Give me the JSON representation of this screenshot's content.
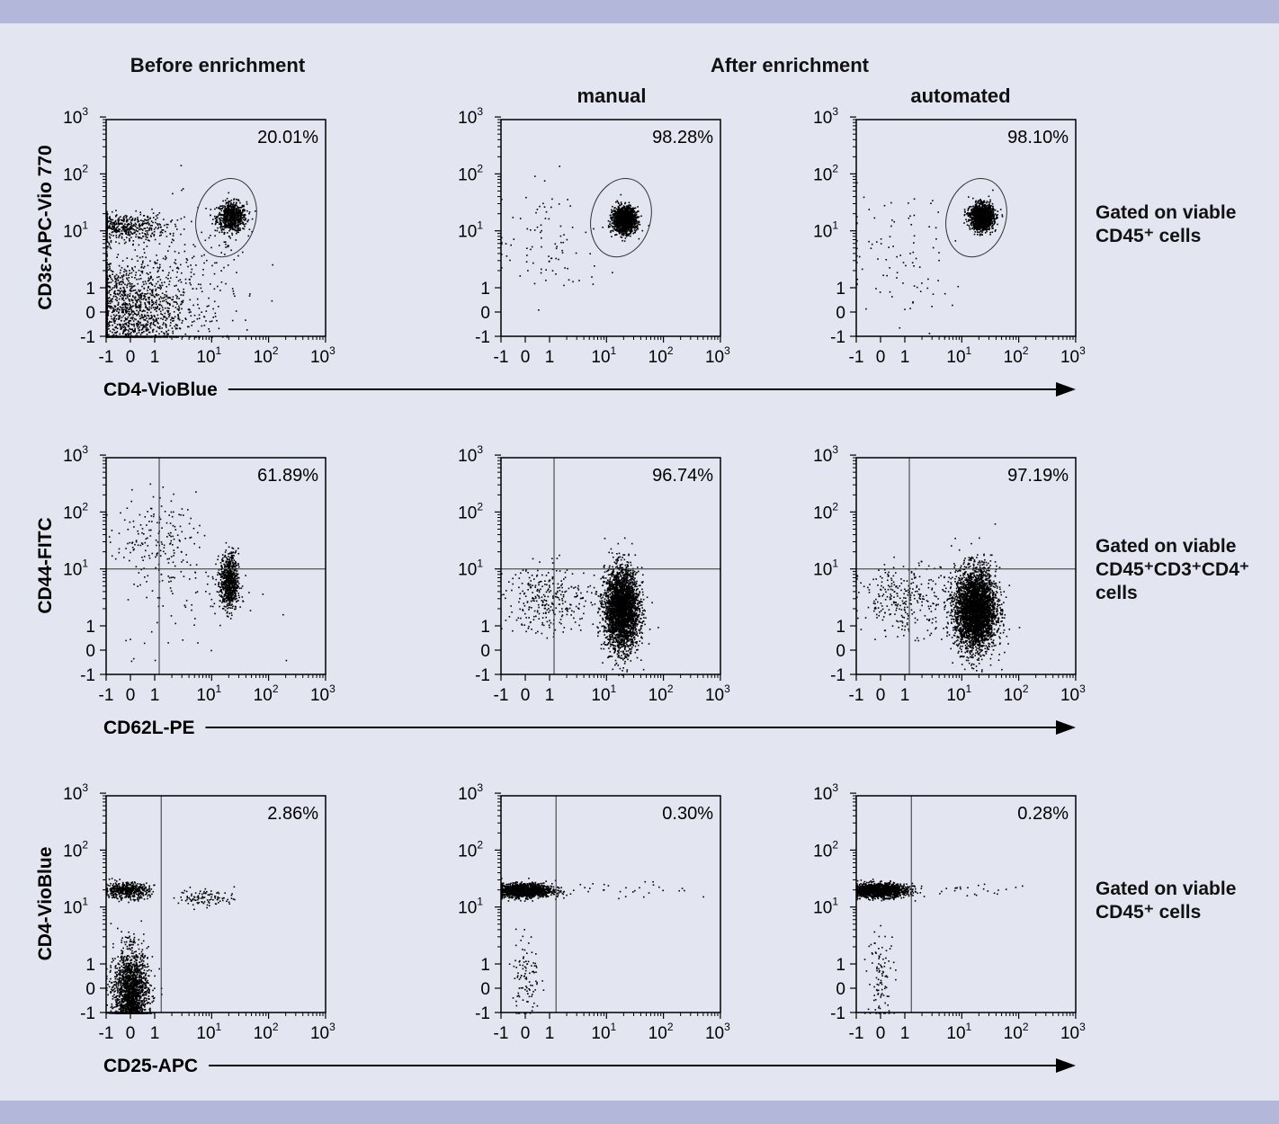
{
  "headers": {
    "before": "Before enrichment",
    "after": "After enrichment",
    "manual": "manual",
    "automated": "automated"
  },
  "colors": {
    "background": "#e3e5f1",
    "band": "#b3b8da",
    "points": "#000000"
  },
  "notes": [
    {
      "line1": "Gated on viable",
      "line2": "CD45⁺ cells",
      "line3": ""
    },
    {
      "line1": "Gated on viable",
      "line2": "CD45⁺CD3⁺CD4⁺",
      "line3": "cells"
    },
    {
      "line1": "Gated on viable",
      "line2": "CD45⁺ cells",
      "line3": ""
    }
  ],
  "chart_data": {
    "type": "scatter",
    "axis_scale": "biexponential (linear -1 to 1, log 1 to 10^3)",
    "ticks": [
      {
        "value": -1,
        "label": "-1",
        "sup": ""
      },
      {
        "value": 0,
        "label": "0",
        "sup": ""
      },
      {
        "value": 1,
        "label": "1",
        "sup": ""
      },
      {
        "value": 10,
        "label": "10",
        "sup": "1"
      },
      {
        "value": 100,
        "label": "10",
        "sup": "2"
      },
      {
        "value": 1000,
        "label": "10",
        "sup": "3"
      }
    ],
    "xlim": [
      -1,
      1000
    ],
    "ylim": [
      -1,
      1000
    ],
    "rows": [
      {
        "xlabel": "CD4-VioBlue",
        "ylabel": "CD3ε-APC-Vio 770",
        "gate": {
          "type": "ellipse",
          "x": 18,
          "y": 17,
          "rx_decades": 0.52,
          "ry_decades": 0.7
        },
        "plots": [
          {
            "percent": "20.01%",
            "clusters": [
              {
                "x": 22,
                "y": 18,
                "sx": 0.13,
                "sy": 0.13,
                "n": 700
              },
              {
                "x": -0.4,
                "y": 12,
                "sx": 0.4,
                "sy": 0.12,
                "n": 500
              },
              {
                "x": -0.3,
                "y": 0.1,
                "sx": 0.55,
                "sy": 0.45,
                "n": 1600
              },
              {
                "x": 5,
                "y": 1.5,
                "sx": 0.6,
                "sy": 0.6,
                "n": 160
              }
            ]
          },
          {
            "percent": "98.28%",
            "clusters": [
              {
                "x": 20,
                "y": 16,
                "sx": 0.1,
                "sy": 0.11,
                "n": 1500
              },
              {
                "x": 1,
                "y": 6,
                "sx": 0.5,
                "sy": 0.5,
                "n": 90
              }
            ]
          },
          {
            "percent": "98.10%",
            "clusters": [
              {
                "x": 22,
                "y": 18,
                "sx": 0.1,
                "sy": 0.11,
                "n": 1500
              },
              {
                "x": 0.6,
                "y": 3,
                "sx": 0.55,
                "sy": 0.6,
                "n": 90
              }
            ]
          }
        ]
      },
      {
        "xlabel": "CD62L-PE",
        "ylabel": "CD44-FITC",
        "gate": {
          "type": "quadrant",
          "x": 1.2,
          "y": 10
        },
        "plots": [
          {
            "percent": "61.89%",
            "clusters": [
              {
                "x": 1,
                "y": 40,
                "sx": 0.35,
                "sy": 0.35,
                "n": 150
              },
              {
                "x": 20,
                "y": 6,
                "sx": 0.08,
                "sy": 0.25,
                "n": 700
              },
              {
                "x": 4,
                "y": 5,
                "sx": 0.6,
                "sy": 0.6,
                "n": 100
              }
            ]
          },
          {
            "percent": "96.74%",
            "clusters": [
              {
                "x": 18,
                "y": 2,
                "sx": 0.15,
                "sy": 0.35,
                "n": 3000
              },
              {
                "x": 1,
                "y": 3,
                "sx": 0.4,
                "sy": 0.3,
                "n": 300
              }
            ]
          },
          {
            "percent": "97.19%",
            "clusters": [
              {
                "x": 17,
                "y": 2,
                "sx": 0.18,
                "sy": 0.35,
                "n": 3500
              },
              {
                "x": 1,
                "y": 3,
                "sx": 0.4,
                "sy": 0.3,
                "n": 300
              }
            ]
          }
        ]
      },
      {
        "xlabel": "CD25-APC",
        "ylabel": "CD4-VioBlue",
        "gate": {
          "type": "vertical",
          "x": 1.3
        },
        "plots": [
          {
            "percent": "2.86%",
            "clusters": [
              {
                "x": -0.2,
                "y": 20,
                "sx": 0.2,
                "sy": 0.07,
                "n": 500
              },
              {
                "x": 0,
                "y": -0.3,
                "sx": 0.15,
                "sy": 0.4,
                "n": 2000
              },
              {
                "x": 8,
                "y": 15,
                "sx": 0.25,
                "sy": 0.08,
                "n": 100
              }
            ]
          },
          {
            "percent": "0.30%",
            "clusters": [
              {
                "x": -0.1,
                "y": 20,
                "sx": 0.25,
                "sy": 0.06,
                "n": 1500
              },
              {
                "x": 0,
                "y": 0.5,
                "sx": 0.12,
                "sy": 0.4,
                "n": 100
              },
              {
                "x": 20,
                "y": 20,
                "sx": 0.6,
                "sy": 0.08,
                "n": 30
              }
            ]
          },
          {
            "percent": "0.28%",
            "clusters": [
              {
                "x": -0.1,
                "y": 20,
                "sx": 0.25,
                "sy": 0.06,
                "n": 1500
              },
              {
                "x": 0,
                "y": 0.5,
                "sx": 0.12,
                "sy": 0.4,
                "n": 100
              },
              {
                "x": 20,
                "y": 20,
                "sx": 0.6,
                "sy": 0.08,
                "n": 25
              }
            ]
          }
        ]
      }
    ]
  }
}
